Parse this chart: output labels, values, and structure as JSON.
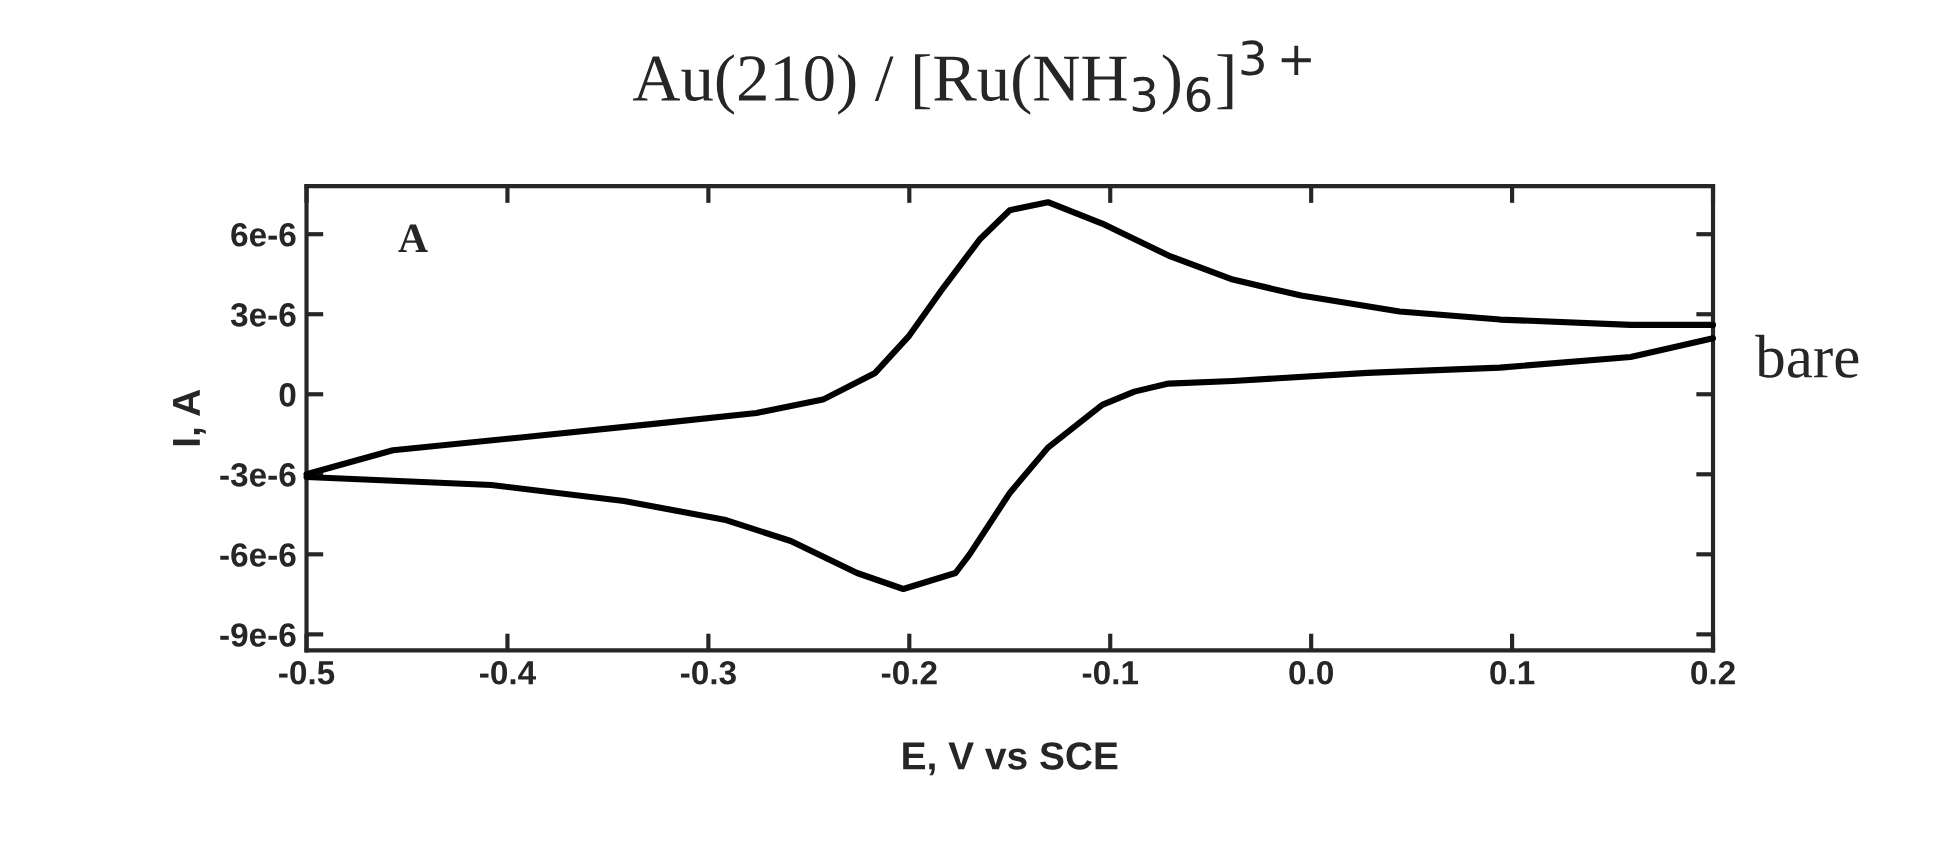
{
  "chart_data": {
    "type": "line",
    "title": "Au(210) / [Ru(NH$_{3}$)$_{6}$]$^{3+}$",
    "xlabel": "E, V vs SCE",
    "ylabel": "I, A",
    "annotations": [
      "A",
      "bare"
    ],
    "series": [
      {
        "color": "#000000",
        "x": [
          -0.5,
          -0.457,
          -0.391,
          -0.326,
          -0.276,
          -0.243,
          -0.217,
          -0.2,
          -0.183,
          -0.165,
          -0.15,
          -0.131,
          -0.104,
          -0.071,
          -0.039,
          -0.005,
          0.044,
          0.094,
          0.159,
          0.2
        ],
        "values": [
          -3e-06,
          -2.1e-06,
          -1.6e-06,
          -1.1e-06,
          -7e-07,
          -2e-07,
          8e-07,
          2.2e-06,
          4e-06,
          5.8e-06,
          6.9e-06,
          7.2e-06,
          6.4e-06,
          5.2e-06,
          4.3e-06,
          3.7e-06,
          3.1e-06,
          2.8e-06,
          2.6e-06,
          2.6e-06
        ]
      },
      {
        "color": "#000000",
        "x": [
          0.2,
          0.159,
          0.094,
          0.028,
          -0.039,
          -0.071,
          -0.088,
          -0.104,
          -0.131,
          -0.15,
          -0.17,
          -0.177,
          -0.203,
          -0.226,
          -0.259,
          -0.292,
          -0.342,
          -0.408,
          -0.5
        ],
        "values": [
          2.1e-06,
          1.4e-06,
          1e-06,
          8e-07,
          5e-07,
          4e-07,
          1e-07,
          -4e-07,
          -2e-06,
          -3.7e-06,
          -6e-06,
          -6.7e-06,
          -7.3e-06,
          -6.7e-06,
          -5.5e-06,
          -4.7e-06,
          -4e-06,
          -3.4e-06,
          -3.1e-06
        ]
      }
    ],
    "xlim": [
      -0.5,
      0.2
    ],
    "xticks": [
      {
        "value": -0.5,
        "label": "-0.5"
      },
      {
        "value": -0.4,
        "label": "-0.4"
      },
      {
        "value": -0.3,
        "label": "-0.3"
      },
      {
        "value": -0.2,
        "label": "-0.2"
      },
      {
        "value": -0.1,
        "label": "-0.1"
      },
      {
        "value": 0.0,
        "label": "0.0"
      },
      {
        "value": 0.1,
        "label": "0.1"
      },
      {
        "value": 0.2,
        "label": "0.2"
      }
    ],
    "ylim": [
      -9.6e-06,
      7.8e-06
    ],
    "yticks": [
      {
        "value": 6e-06,
        "label": "6e-6"
      },
      {
        "value": 3e-06,
        "label": "3e-6"
      },
      0,
      {
        "value": -3e-06,
        "label": "-3e-6"
      },
      {
        "value": -6e-06,
        "label": "-6e-6"
      },
      {
        "value": -9e-06,
        "label": "-9e-6"
      }
    ],
    "grid": false,
    "legend": false,
    "marker": "none",
    "line_style": "solid"
  }
}
